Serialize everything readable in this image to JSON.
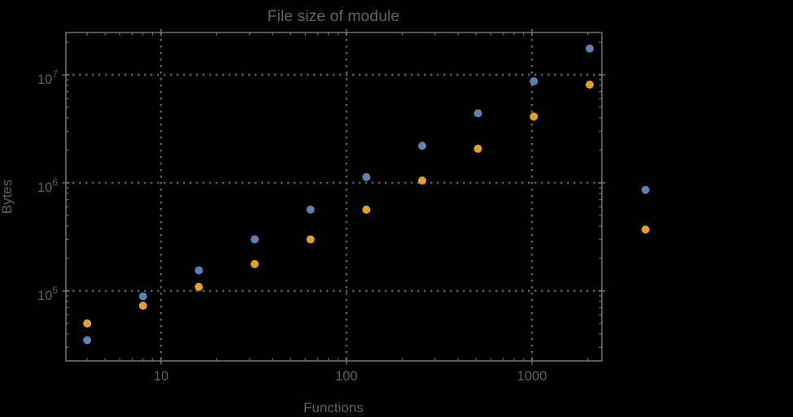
{
  "page": {
    "background_color": "#000000"
  },
  "chart_data": {
    "type": "scatter",
    "title": "File size of module",
    "xlabel": "Functions",
    "ylabel": "Bytes",
    "x_scale": "log",
    "y_scale": "log",
    "xlim": [
      3.07,
      2383
    ],
    "ylim": [
      22500,
      24600000
    ],
    "grid": "dotted-at-major-ticks",
    "legend": "none",
    "frame": true,
    "plot_range_clipping": false,
    "colors": {
      "frame": "#6e6e6e",
      "grid": "#5f5f5f",
      "text": "#616161",
      "series_blue": "#5e81b5",
      "series_orange": "#e3a02f"
    },
    "x_major_ticks": [
      {
        "value": 10,
        "label": "10"
      },
      {
        "value": 100,
        "label": "100"
      },
      {
        "value": 1000,
        "label": "1000"
      }
    ],
    "y_major_ticks": [
      {
        "value": 100000,
        "base": "10",
        "exponent": "5"
      },
      {
        "value": 1000000,
        "base": "10",
        "exponent": "6"
      },
      {
        "value": 10000000,
        "base": "10",
        "exponent": "7"
      }
    ],
    "series": [
      {
        "name": "blue",
        "color": "#5e81b5",
        "x": [
          4,
          8,
          16,
          32,
          64,
          128,
          256,
          512,
          1024,
          2048,
          4096
        ],
        "y": [
          35000,
          89000,
          155000,
          300000,
          565000,
          1130000,
          2200000,
          4400000,
          8700000,
          17500000,
          860000
        ]
      },
      {
        "name": "orange",
        "color": "#e3a02f",
        "x": [
          4,
          8,
          16,
          32,
          64,
          128,
          256,
          512,
          1024,
          2048,
          4096
        ],
        "y": [
          50000,
          73000,
          109000,
          177000,
          300000,
          565000,
          1050000,
          2070000,
          4100000,
          8100000,
          370000
        ]
      }
    ]
  }
}
